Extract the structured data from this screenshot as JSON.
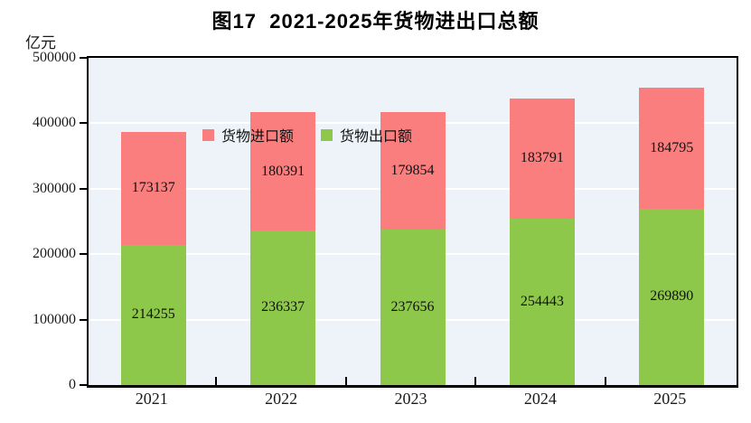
{
  "figure": {
    "title": "图17  2021-2025年货物进出口总额",
    "unit_label": "亿元"
  },
  "legend": {
    "items": [
      {
        "label": "货物进口额",
        "color": "#FB7E7E"
      },
      {
        "label": "货物出口额",
        "color": "#8DC84B"
      }
    ]
  },
  "chart_data": {
    "type": "bar",
    "stacked": true,
    "title": "图17 2021-2025年货物进出口总额",
    "ylabel_unit": "亿元",
    "categories": [
      "2021",
      "2022",
      "2023",
      "2024",
      "2025"
    ],
    "series": [
      {
        "name": "货物出口额",
        "color": "#8DC84B",
        "values": [
          214255,
          236337,
          237656,
          254443,
          269890
        ]
      },
      {
        "name": "货物进口额",
        "color": "#FB7E7E",
        "values": [
          173137,
          180391,
          179854,
          183791,
          184795
        ]
      }
    ],
    "ylim": [
      0,
      500000
    ],
    "yticks": [
      0,
      100000,
      200000,
      300000,
      400000,
      500000
    ],
    "gridline_values": [
      100000,
      200000,
      300000,
      400000
    ],
    "grid": true,
    "legend_position": "top-left-inside",
    "colors": {
      "plot_background": "#EDF3F8",
      "gridline": "#FFFFFF",
      "axis_frame": "#000000",
      "text": "#111111"
    }
  }
}
